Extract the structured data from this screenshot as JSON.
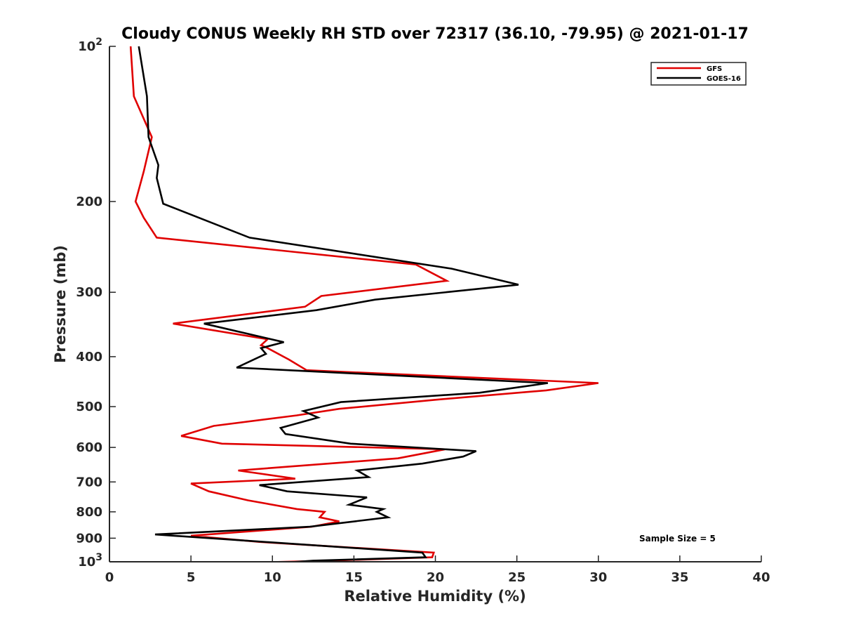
{
  "chart_data": {
    "type": "line",
    "title": "Cloudy CONUS Weekly RH STD over 72317 (36.10, -79.95) @ 2021-01-17",
    "xlabel": "Relative Humidity (%)",
    "ylabel": "Pressure (mb)",
    "xlim": [
      0,
      40
    ],
    "ylim": [
      100,
      1000
    ],
    "y_scale": "log",
    "y_reversed": true,
    "grid": false,
    "legend_position": "top-right",
    "x_ticks": [
      "0",
      "5",
      "10",
      "15",
      "20",
      "25",
      "30",
      "35",
      "40"
    ],
    "y_ticks": [
      {
        "value": 100,
        "base": "10",
        "exp": "2"
      },
      {
        "value": 200,
        "label": "200"
      },
      {
        "value": 300,
        "label": "300"
      },
      {
        "value": 400,
        "label": "400"
      },
      {
        "value": 500,
        "label": "500"
      },
      {
        "value": 600,
        "label": "600"
      },
      {
        "value": 700,
        "label": "700"
      },
      {
        "value": 800,
        "label": "800"
      },
      {
        "value": 900,
        "label": "900"
      },
      {
        "value": 1000,
        "base": "10",
        "exp": "3"
      }
    ],
    "annotation": "Sample Size = 5",
    "series": [
      {
        "name": "GFS",
        "color": "#e00000",
        "points": [
          [
            1.3,
            100
          ],
          [
            1.5,
            125
          ],
          [
            2.6,
            150
          ],
          [
            2.1,
            175
          ],
          [
            1.6,
            200
          ],
          [
            2.1,
            215
          ],
          [
            2.9,
            235
          ],
          [
            18.8,
            265
          ],
          [
            20.7,
            285
          ],
          [
            13.0,
            305
          ],
          [
            12.0,
            320
          ],
          [
            3.9,
            345
          ],
          [
            9.7,
            370
          ],
          [
            9.3,
            380
          ],
          [
            9.7,
            385
          ],
          [
            11.0,
            405
          ],
          [
            12.1,
            425
          ],
          [
            30.0,
            450
          ],
          [
            26.8,
            465
          ],
          [
            20.0,
            485
          ],
          [
            14.1,
            505
          ],
          [
            11.5,
            520
          ],
          [
            6.4,
            545
          ],
          [
            4.4,
            570
          ],
          [
            6.9,
            590
          ],
          [
            20.6,
            605
          ],
          [
            17.7,
            630
          ],
          [
            7.9,
            665
          ],
          [
            11.4,
            690
          ],
          [
            5.0,
            705
          ],
          [
            6.1,
            730
          ],
          [
            8.5,
            760
          ],
          [
            11.5,
            790
          ],
          [
            13.2,
            800
          ],
          [
            12.9,
            820
          ],
          [
            14.1,
            835
          ],
          [
            12.4,
            855
          ],
          [
            5.0,
            890
          ],
          [
            9.2,
            915
          ],
          [
            19.9,
            960
          ],
          [
            19.8,
            980
          ],
          [
            13.5,
            995
          ],
          [
            5.3,
            1010
          ]
        ]
      },
      {
        "name": "GOES-16",
        "color": "#000000",
        "points": [
          [
            1.8,
            100
          ],
          [
            2.3,
            125
          ],
          [
            2.4,
            150
          ],
          [
            3.0,
            170
          ],
          [
            2.9,
            180
          ],
          [
            3.3,
            202
          ],
          [
            8.6,
            235
          ],
          [
            21.0,
            270
          ],
          [
            25.1,
            290
          ],
          [
            16.3,
            310
          ],
          [
            12.7,
            325
          ],
          [
            5.8,
            345
          ],
          [
            10.7,
            375
          ],
          [
            9.3,
            385
          ],
          [
            9.6,
            395
          ],
          [
            7.8,
            420
          ],
          [
            26.9,
            450
          ],
          [
            22.7,
            470
          ],
          [
            14.2,
            490
          ],
          [
            11.9,
            510
          ],
          [
            12.8,
            525
          ],
          [
            10.5,
            550
          ],
          [
            10.8,
            565
          ],
          [
            14.8,
            590
          ],
          [
            22.5,
            610
          ],
          [
            21.7,
            625
          ],
          [
            19.2,
            645
          ],
          [
            15.2,
            665
          ],
          [
            15.9,
            685
          ],
          [
            9.2,
            710
          ],
          [
            10.9,
            730
          ],
          [
            15.8,
            750
          ],
          [
            14.7,
            775
          ],
          [
            16.8,
            790
          ],
          [
            16.4,
            800
          ],
          [
            17.1,
            820
          ],
          [
            12.3,
            855
          ],
          [
            2.8,
            885
          ],
          [
            7.3,
            905
          ],
          [
            19.2,
            960
          ],
          [
            19.4,
            980
          ],
          [
            12.5,
            995
          ],
          [
            9.6,
            1010
          ]
        ]
      }
    ]
  }
}
